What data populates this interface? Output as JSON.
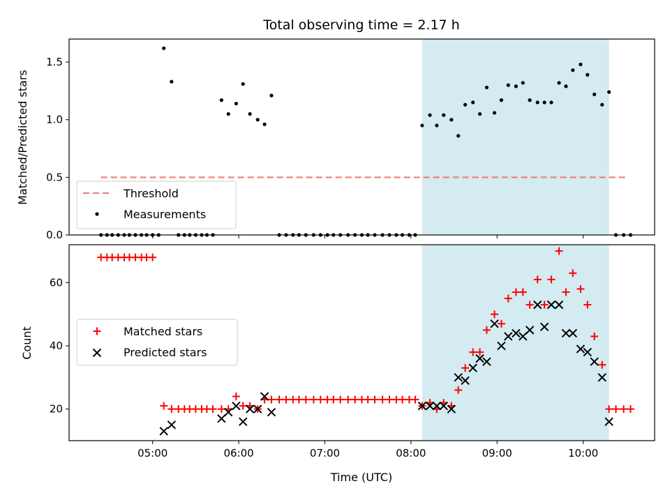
{
  "chart_data": {
    "type": "scatter",
    "title": "Total observing time = 2.17 h",
    "xlabel": "Time (UTC)",
    "x_ticks": [
      "05:00",
      "06:00",
      "07:00",
      "08:00",
      "09:00",
      "10:00"
    ],
    "x_tick_hours": [
      5,
      6,
      7,
      8,
      9,
      10
    ],
    "xlim_hours": [
      4.03,
      10.83
    ],
    "highlight_hours": [
      8.13,
      10.3
    ],
    "highlight_color": "#d3ebf1",
    "panels": [
      {
        "ylabel": "Matched/Predicted stars",
        "ylim": [
          0,
          1.7
        ],
        "y_ticks": [
          "0.0",
          "0.5",
          "1.0",
          "1.5"
        ],
        "y_tick_values": [
          0,
          0.5,
          1.0,
          1.5
        ],
        "legend_position": "lower-left",
        "legend": [
          {
            "label": "Threshold",
            "marker": "dashed-line",
            "color": "#f08080"
          },
          {
            "label": "Measurements",
            "marker": "dot",
            "color": "#000000"
          }
        ],
        "threshold": {
          "value": 0.5,
          "x_range_hours": [
            4.4,
            10.5
          ],
          "color": "#f08080"
        },
        "measurements": {
          "color": "#000000",
          "x_hours": [
            4.4,
            4.47,
            4.53,
            4.6,
            4.67,
            4.73,
            4.8,
            4.87,
            4.93,
            5.0,
            5.07,
            5.13,
            5.22,
            5.3,
            5.37,
            5.43,
            5.5,
            5.57,
            5.63,
            5.7,
            5.8,
            5.88,
            5.97,
            6.05,
            6.13,
            6.22,
            6.3,
            6.38,
            6.47,
            6.55,
            6.63,
            6.7,
            6.78,
            6.87,
            6.95,
            7.03,
            7.1,
            7.18,
            7.27,
            7.35,
            7.43,
            7.5,
            7.58,
            7.67,
            7.75,
            7.83,
            7.9,
            7.98,
            8.05,
            8.13,
            8.22,
            8.3,
            8.38,
            8.47,
            8.55,
            8.63,
            8.72,
            8.8,
            8.88,
            8.97,
            9.05,
            9.13,
            9.22,
            9.3,
            9.38,
            9.47,
            9.55,
            9.63,
            9.72,
            9.8,
            9.88,
            9.97,
            10.05,
            10.13,
            10.22,
            10.3,
            10.38,
            10.47,
            10.55
          ],
          "y_values": [
            0,
            0,
            0,
            0,
            0,
            0,
            0,
            0,
            0,
            0,
            0,
            1.62,
            1.33,
            0,
            0,
            0,
            0,
            0,
            0,
            0,
            1.17,
            1.05,
            1.14,
            1.31,
            1.05,
            1.0,
            0.96,
            1.21,
            0,
            0,
            0,
            0,
            0,
            0,
            0,
            0,
            0,
            0,
            0,
            0,
            0,
            0,
            0,
            0,
            0,
            0,
            0,
            0,
            0,
            0.95,
            1.04,
            0.95,
            1.04,
            1.0,
            0.86,
            1.13,
            1.15,
            1.05,
            1.28,
            1.06,
            1.17,
            1.3,
            1.29,
            1.32,
            1.17,
            1.15,
            1.15,
            1.15,
            1.32,
            1.29,
            1.43,
            1.48,
            1.39,
            1.22,
            1.13,
            1.24,
            0,
            0,
            0
          ]
        }
      },
      {
        "ylabel": "Count",
        "ylim": [
          10,
          72
        ],
        "y_ticks": [
          "20",
          "40",
          "60"
        ],
        "y_tick_values": [
          20,
          40,
          60
        ],
        "legend_position": "center-left",
        "legend": [
          {
            "label": "Matched stars",
            "marker": "plus",
            "color": "#ff0000"
          },
          {
            "label": "Predicted stars",
            "marker": "x",
            "color": "#000000"
          }
        ],
        "matched": {
          "color": "#ff0000",
          "x_hours": [
            4.4,
            4.47,
            4.53,
            4.6,
            4.67,
            4.73,
            4.8,
            4.87,
            4.93,
            5.0,
            5.13,
            5.22,
            5.3,
            5.37,
            5.43,
            5.5,
            5.57,
            5.63,
            5.7,
            5.8,
            5.88,
            5.97,
            6.05,
            6.13,
            6.22,
            6.3,
            6.38,
            6.47,
            6.55,
            6.63,
            6.7,
            6.78,
            6.87,
            6.95,
            7.03,
            7.1,
            7.18,
            7.27,
            7.35,
            7.43,
            7.5,
            7.58,
            7.67,
            7.75,
            7.83,
            7.9,
            7.98,
            8.05,
            8.13,
            8.22,
            8.3,
            8.38,
            8.47,
            8.55,
            8.63,
            8.72,
            8.8,
            8.88,
            8.97,
            9.05,
            9.13,
            9.22,
            9.3,
            9.38,
            9.47,
            9.55,
            9.63,
            9.72,
            9.8,
            9.88,
            9.97,
            10.05,
            10.13,
            10.22,
            10.3,
            10.38,
            10.47,
            10.55
          ],
          "y_values": [
            68,
            68,
            68,
            68,
            68,
            68,
            68,
            68,
            68,
            68,
            21,
            20,
            20,
            20,
            20,
            20,
            20,
            20,
            20,
            20,
            20,
            24,
            21,
            21,
            20,
            23,
            23,
            23,
            23,
            23,
            23,
            23,
            23,
            23,
            23,
            23,
            23,
            23,
            23,
            23,
            23,
            23,
            23,
            23,
            23,
            23,
            23,
            23,
            21,
            22,
            20,
            22,
            21,
            26,
            33,
            38,
            38,
            45,
            50,
            47,
            55,
            57,
            57,
            53,
            61,
            53,
            61,
            70,
            57,
            63,
            58,
            53,
            43,
            34,
            20,
            20,
            20,
            20
          ]
        },
        "predicted": {
          "color": "#000000",
          "x_hours": [
            5.13,
            5.22,
            5.8,
            5.88,
            5.97,
            6.05,
            6.13,
            6.22,
            6.3,
            6.38,
            8.13,
            8.22,
            8.3,
            8.38,
            8.47,
            8.55,
            8.63,
            8.72,
            8.8,
            8.88,
            8.97,
            9.05,
            9.13,
            9.22,
            9.3,
            9.38,
            9.47,
            9.55,
            9.63,
            9.72,
            9.8,
            9.88,
            9.97,
            10.05,
            10.13,
            10.22,
            10.3
          ],
          "y_values": [
            13,
            15,
            17,
            19,
            21,
            16,
            20,
            20,
            24,
            19,
            21,
            21,
            21,
            21,
            20,
            30,
            29,
            33,
            36,
            35,
            47,
            40,
            43,
            44,
            43,
            45,
            53,
            46,
            53,
            53,
            44,
            44,
            39,
            38,
            35,
            30,
            16
          ]
        }
      }
    ]
  }
}
